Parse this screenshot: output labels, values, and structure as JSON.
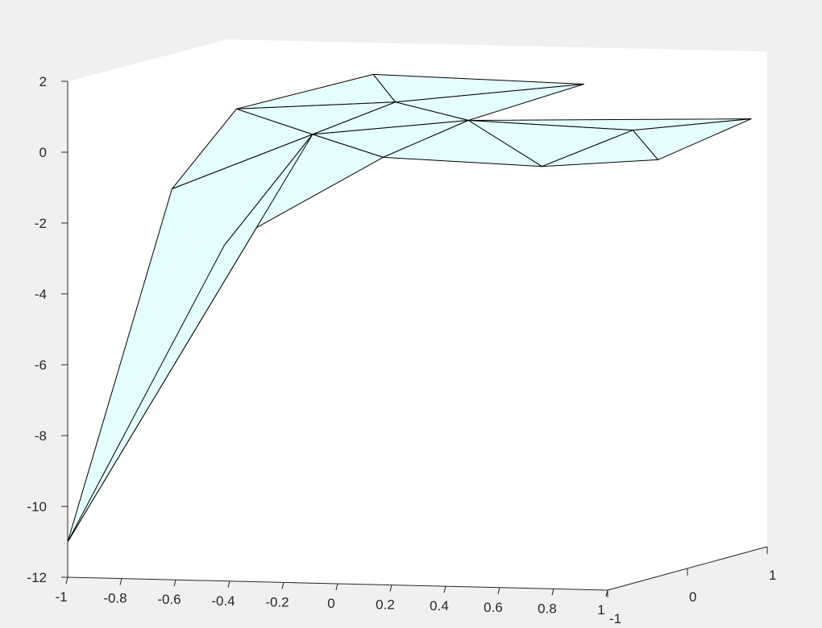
{
  "figure": {
    "background": "#f0f0f0",
    "axes_background": "#ffffff"
  },
  "chart_data": {
    "type": "surface-3d",
    "title": "",
    "xlabel": "",
    "ylabel": "",
    "zlabel": "",
    "grid": false,
    "legend": "none",
    "xlim": [
      -1,
      1
    ],
    "ylim": [
      -1,
      1
    ],
    "zlim": [
      -12,
      2
    ],
    "x_ticks": [
      -1,
      -0.8,
      -0.6,
      -0.4,
      -0.2,
      0,
      0.2,
      0.4,
      0.6,
      0.8,
      1
    ],
    "x_tick_labels": [
      "-1",
      "-0.8",
      "-0.6",
      "-0.4",
      "-0.2",
      "0",
      "0.2",
      "0.4",
      "0.6",
      "0.8",
      "1"
    ],
    "y_ticks": [
      -1,
      0,
      1
    ],
    "y_tick_labels": [
      "-1",
      "0",
      "1"
    ],
    "z_ticks": [
      -12,
      -10,
      -8,
      -6,
      -4,
      -2,
      0,
      2
    ],
    "z_tick_labels": [
      "-12",
      "-10",
      "-8",
      "-6",
      "-4",
      "-2",
      "0",
      "2"
    ],
    "face_color": "#e4fdfd",
    "edge_color": "#000000",
    "vertices": [
      [
        -1.0,
        -1.0,
        -11.0
      ],
      [
        -0.85,
        -0.2,
        -1.5
      ],
      [
        -0.7,
        0.1,
        0.6
      ],
      [
        -0.4,
        0.8,
        1.2
      ],
      [
        -0.45,
        -0.9,
        -2.6
      ],
      [
        -0.3,
        -0.3,
        0.2
      ],
      [
        -0.2,
        0.4,
        0.7
      ],
      [
        0.1,
        0.3,
        0.3
      ],
      [
        0.35,
        0.9,
        1.0
      ],
      [
        0.05,
        -0.6,
        -0.2
      ],
      [
        0.55,
        -0.3,
        -0.55
      ],
      [
        0.65,
        0.5,
        0.0
      ],
      [
        0.95,
        -0.2,
        -0.35
      ],
      [
        1.0,
        0.8,
        0.2
      ]
    ],
    "faces": [
      [
        0,
        1,
        5
      ],
      [
        0,
        4,
        5
      ],
      [
        1,
        2,
        5
      ],
      [
        2,
        3,
        6
      ],
      [
        2,
        6,
        5
      ],
      [
        3,
        8,
        6
      ],
      [
        6,
        8,
        7
      ],
      [
        5,
        6,
        7
      ],
      [
        4,
        5,
        9
      ],
      [
        5,
        7,
        9
      ],
      [
        9,
        7,
        10
      ],
      [
        7,
        11,
        10
      ],
      [
        10,
        11,
        12
      ],
      [
        11,
        13,
        12
      ],
      [
        7,
        13,
        11
      ]
    ]
  }
}
